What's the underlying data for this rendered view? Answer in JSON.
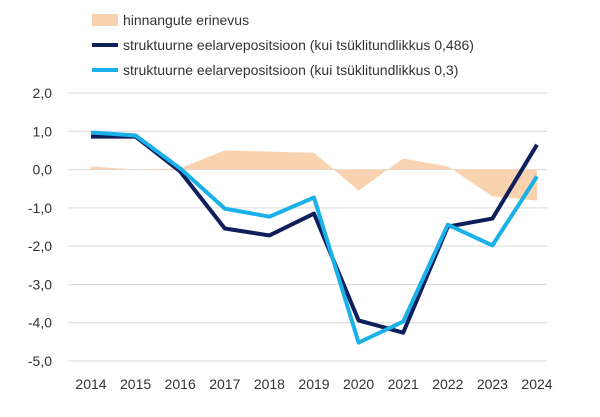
{
  "chart_data": {
    "type": "line",
    "title": "",
    "xlabel": "",
    "ylabel": "",
    "ylim": [
      -5,
      2
    ],
    "yticks": [
      "2,0",
      "1,0",
      "0,0",
      "-1,0",
      "-2,0",
      "-3,0",
      "-4,0",
      "-5,0"
    ],
    "ytick_values": [
      2,
      1,
      0,
      -1,
      -2,
      -3,
      -4,
      -5
    ],
    "grid": true,
    "legend_position": "top",
    "categories": [
      "2014",
      "2015",
      "2016",
      "2017",
      "2018",
      "2019",
      "2020",
      "2021",
      "2022",
      "2023",
      "2024"
    ],
    "series": [
      {
        "name": "hinnangute erinevus",
        "kind": "area",
        "color": "#f9d3b0",
        "values": [
          0.08,
          0.0,
          0.03,
          0.5,
          0.47,
          0.44,
          -0.55,
          0.29,
          0.08,
          -0.7,
          -0.81
        ]
      },
      {
        "name": "struktuurne eelarvepositsioon (kui tsüklitundlikkus 0,486)",
        "kind": "line",
        "color": "#0f1f5c",
        "values": [
          0.86,
          0.86,
          -0.05,
          -1.54,
          -1.72,
          -1.15,
          -3.94,
          -4.26,
          -1.49,
          -1.28,
          0.65
        ]
      },
      {
        "name": "struktuurne eelarvepositsioon (kui tsüklitundlikkus 0,3)",
        "kind": "line",
        "color": "#1ab0e8",
        "values": [
          0.97,
          0.89,
          0.03,
          -1.02,
          -1.23,
          -0.73,
          -4.52,
          -3.97,
          -1.44,
          -1.98,
          -0.18
        ]
      }
    ]
  }
}
